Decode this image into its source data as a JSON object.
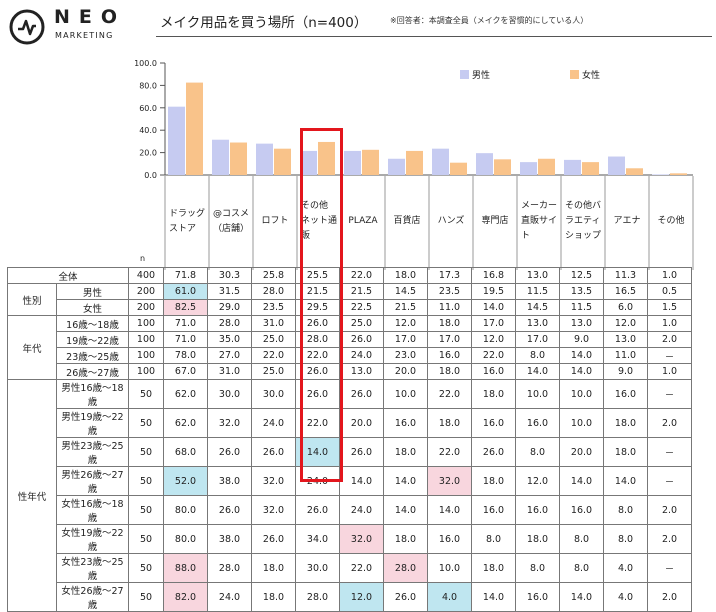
{
  "brand": {
    "name": "NEO",
    "sub": "MARKETING"
  },
  "title": "メイク用品を買う場所（n=400）",
  "note": "※回答者：本調査全員（メイクを習慣的にしている人）",
  "n_label": "n",
  "colors": {
    "male": "#c6cbf1",
    "female": "#f9c38a",
    "highlight_box": "#e3161d",
    "cell_blue": "#bfe6f0",
    "cell_pink": "#f8d6de"
  },
  "chart_data": {
    "type": "bar",
    "categories": [
      "ドラッグストア",
      "@コスメ（店舗）",
      "ロフト",
      "その他ネット通販",
      "PLAZA",
      "百貨店",
      "ハンズ",
      "専門店",
      "メーカー直販サイト",
      "その他バラエティショップ",
      "アエナ",
      "その他"
    ],
    "header_lines": [
      [
        "ドラッグ",
        "ストア"
      ],
      [
        "@コスメ",
        "（店舗）"
      ],
      [
        "ロフト"
      ],
      [
        "その他",
        "ネット通",
        "販"
      ],
      [
        "PLAZA"
      ],
      [
        "百貨店"
      ],
      [
        "ハンズ"
      ],
      [
        "専門店"
      ],
      [
        "メーカー",
        "直販サイ",
        "ト"
      ],
      [
        "その他バ",
        "ラエティ",
        "ショップ"
      ],
      [
        "アエナ"
      ],
      [
        "その他"
      ]
    ],
    "series": [
      {
        "name": "男性",
        "values": [
          61.0,
          31.5,
          28.0,
          21.5,
          21.5,
          14.5,
          23.5,
          19.5,
          11.5,
          13.5,
          16.5,
          0.5
        ]
      },
      {
        "name": "女性",
        "values": [
          82.5,
          29.0,
          23.5,
          29.5,
          22.5,
          21.5,
          11.0,
          14.0,
          14.5,
          11.5,
          6.0,
          1.5
        ]
      }
    ],
    "ylim": [
      0,
      100
    ],
    "yticks": [
      "100.0",
      "80.0",
      "60.0",
      "40.0",
      "20.0",
      "0.0"
    ],
    "yticks_values": [
      100,
      80,
      60,
      40,
      20,
      0
    ],
    "legend_position": "top-right",
    "highlight_category": "その他ネット通販"
  },
  "table": {
    "groups": [
      {
        "label": "",
        "rows": [
          {
            "label": "全体",
            "n": "400",
            "values": [
              "71.8",
              "30.3",
              "25.8",
              "25.5",
              "22.0",
              "18.0",
              "17.3",
              "16.8",
              "13.0",
              "12.5",
              "11.3",
              "1.0"
            ],
            "hl": {}
          }
        ]
      },
      {
        "label": "性別",
        "rows": [
          {
            "label": "男性",
            "n": "200",
            "values": [
              "61.0",
              "31.5",
              "28.0",
              "21.5",
              "21.5",
              "14.5",
              "23.5",
              "19.5",
              "11.5",
              "13.5",
              "16.5",
              "0.5"
            ],
            "hl": {
              "0": "blue"
            }
          },
          {
            "label": "女性",
            "n": "200",
            "values": [
              "82.5",
              "29.0",
              "23.5",
              "29.5",
              "22.5",
              "21.5",
              "11.0",
              "14.0",
              "14.5",
              "11.5",
              "6.0",
              "1.5"
            ],
            "hl": {
              "0": "pink"
            }
          }
        ]
      },
      {
        "label": "年代",
        "rows": [
          {
            "label": "16歳～18歳",
            "n": "100",
            "values": [
              "71.0",
              "28.0",
              "31.0",
              "26.0",
              "25.0",
              "12.0",
              "18.0",
              "17.0",
              "13.0",
              "13.0",
              "12.0",
              "1.0"
            ],
            "hl": {}
          },
          {
            "label": "19歳～22歳",
            "n": "100",
            "values": [
              "71.0",
              "35.0",
              "25.0",
              "28.0",
              "26.0",
              "17.0",
              "17.0",
              "12.0",
              "17.0",
              "9.0",
              "13.0",
              "2.0"
            ],
            "hl": {}
          },
          {
            "label": "23歳～25歳",
            "n": "100",
            "values": [
              "78.0",
              "27.0",
              "22.0",
              "22.0",
              "24.0",
              "23.0",
              "16.0",
              "22.0",
              "8.0",
              "14.0",
              "11.0",
              "－"
            ],
            "hl": {}
          },
          {
            "label": "26歳～27歳",
            "n": "100",
            "values": [
              "67.0",
              "31.0",
              "25.0",
              "26.0",
              "13.0",
              "20.0",
              "18.0",
              "16.0",
              "14.0",
              "14.0",
              "9.0",
              "1.0"
            ],
            "hl": {}
          }
        ]
      },
      {
        "label": "性年代",
        "rows": [
          {
            "label": "男性16歳～18歳",
            "n": "50",
            "values": [
              "62.0",
              "30.0",
              "30.0",
              "26.0",
              "26.0",
              "10.0",
              "22.0",
              "18.0",
              "10.0",
              "10.0",
              "16.0",
              "－"
            ],
            "hl": {}
          },
          {
            "label": "男性19歳～22歳",
            "n": "50",
            "values": [
              "62.0",
              "32.0",
              "24.0",
              "22.0",
              "20.0",
              "16.0",
              "18.0",
              "16.0",
              "16.0",
              "10.0",
              "18.0",
              "2.0"
            ],
            "hl": {}
          },
          {
            "label": "男性23歳～25歳",
            "n": "50",
            "values": [
              "68.0",
              "26.0",
              "26.0",
              "14.0",
              "26.0",
              "18.0",
              "22.0",
              "26.0",
              "8.0",
              "20.0",
              "18.0",
              "－"
            ],
            "hl": {
              "3": "blue"
            }
          },
          {
            "label": "男性26歳～27歳",
            "n": "50",
            "values": [
              "52.0",
              "38.0",
              "32.0",
              "24.0",
              "14.0",
              "14.0",
              "32.0",
              "18.0",
              "12.0",
              "14.0",
              "14.0",
              "－"
            ],
            "hl": {
              "0": "blue",
              "6": "pink"
            }
          },
          {
            "label": "女性16歳～18歳",
            "n": "50",
            "values": [
              "80.0",
              "26.0",
              "32.0",
              "26.0",
              "24.0",
              "14.0",
              "14.0",
              "16.0",
              "16.0",
              "16.0",
              "8.0",
              "2.0"
            ],
            "hl": {}
          },
          {
            "label": "女性19歳～22歳",
            "n": "50",
            "values": [
              "80.0",
              "38.0",
              "26.0",
              "34.0",
              "32.0",
              "18.0",
              "16.0",
              "8.0",
              "18.0",
              "8.0",
              "8.0",
              "2.0"
            ],
            "hl": {
              "4": "pink"
            }
          },
          {
            "label": "女性23歳～25歳",
            "n": "50",
            "values": [
              "88.0",
              "28.0",
              "18.0",
              "30.0",
              "22.0",
              "28.0",
              "10.0",
              "18.0",
              "8.0",
              "8.0",
              "4.0",
              "－"
            ],
            "hl": {
              "0": "pink",
              "5": "pink"
            }
          },
          {
            "label": "女性26歳～27歳",
            "n": "50",
            "values": [
              "82.0",
              "24.0",
              "18.0",
              "28.0",
              "12.0",
              "26.0",
              "4.0",
              "14.0",
              "16.0",
              "14.0",
              "4.0",
              "2.0"
            ],
            "hl": {
              "0": "pink",
              "4": "blue",
              "6": "blue"
            }
          }
        ]
      }
    ]
  }
}
